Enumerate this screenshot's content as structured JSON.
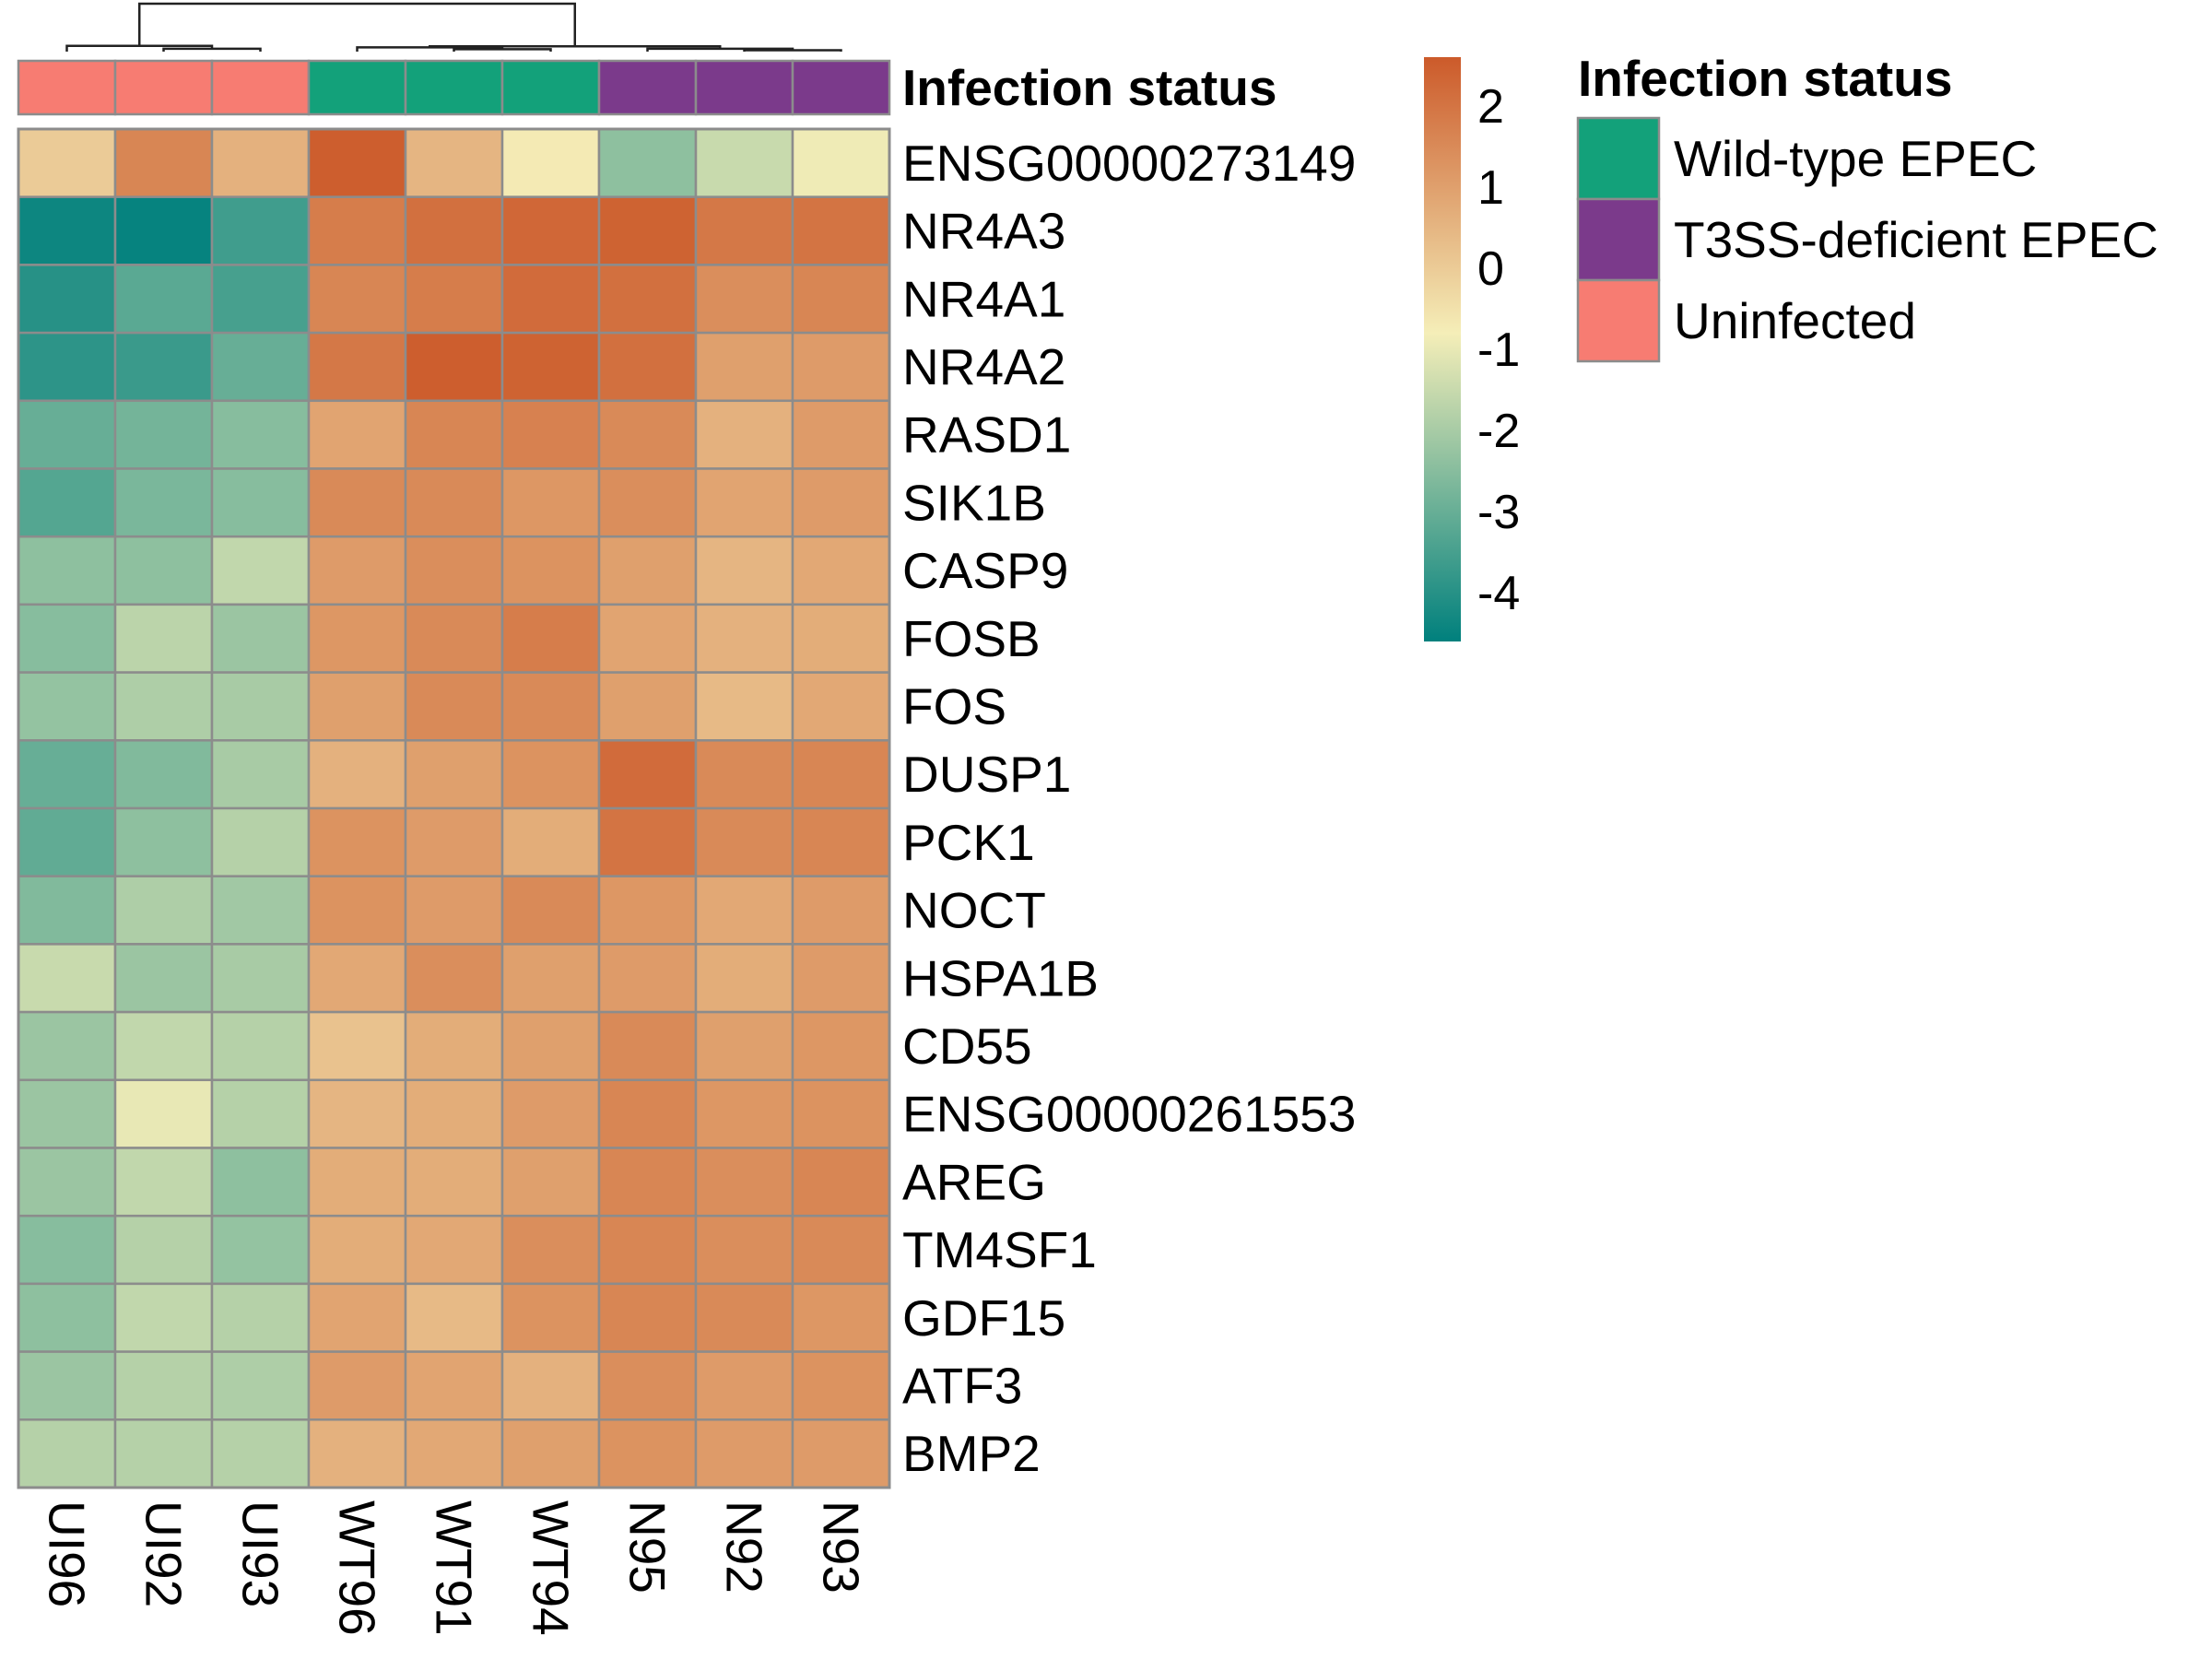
{
  "chart_data": {
    "type": "heatmap",
    "title": "",
    "columns": [
      "UI96",
      "UI92",
      "UI93",
      "WT96",
      "WT91",
      "WT94",
      "N95",
      "N92",
      "N93"
    ],
    "rows": [
      "ENSG00000273149",
      "NR4A3",
      "NR4A1",
      "NR4A2",
      "RASD1",
      "SIK1B",
      "CASP9",
      "FOSB",
      "FOS",
      "DUSP1",
      "PCK1",
      "NOCT",
      "HSPA1B",
      "CD55",
      "ENSG00000261553",
      "AREG",
      "TM4SF1",
      "GDF15",
      "ATF3",
      "BMP2"
    ],
    "values": [
      [
        0.0,
        1.6,
        0.6,
        2.5,
        0.5,
        -0.7,
        -2.4,
        -1.5,
        -0.9
      ],
      [
        -4.4,
        -4.5,
        -3.6,
        1.8,
        2.1,
        2.3,
        2.4,
        1.9,
        2.0
      ],
      [
        -4.0,
        -3.2,
        -3.5,
        1.6,
        1.8,
        2.2,
        2.1,
        1.4,
        1.6
      ],
      [
        -3.9,
        -3.7,
        -3.0,
        1.9,
        2.5,
        2.4,
        2.1,
        1.0,
        1.1
      ],
      [
        -3.0,
        -2.8,
        -2.5,
        0.9,
        1.6,
        1.7,
        1.5,
        0.6,
        1.1
      ],
      [
        -3.3,
        -2.7,
        -2.5,
        1.5,
        1.5,
        1.2,
        1.4,
        0.9,
        1.1
      ],
      [
        -2.4,
        -2.4,
        -1.6,
        1.1,
        1.4,
        1.3,
        1.0,
        0.5,
        0.8
      ],
      [
        -2.5,
        -1.7,
        -2.2,
        1.2,
        1.5,
        1.8,
        0.9,
        0.6,
        0.7
      ],
      [
        -2.3,
        -1.9,
        -2.0,
        1.0,
        1.5,
        1.5,
        1.0,
        0.4,
        0.8
      ],
      [
        -3.0,
        -2.6,
        -2.0,
        0.6,
        1.0,
        1.3,
        2.2,
        1.5,
        1.6
      ],
      [
        -3.1,
        -2.4,
        -1.8,
        1.3,
        1.1,
        0.7,
        2.0,
        1.5,
        1.6
      ],
      [
        -2.6,
        -1.9,
        -2.1,
        1.3,
        1.1,
        1.5,
        1.2,
        0.8,
        1.1
      ],
      [
        -1.5,
        -2.2,
        -2.0,
        0.8,
        1.4,
        1.0,
        1.1,
        0.7,
        1.1
      ],
      [
        -2.2,
        -1.6,
        -1.8,
        0.2,
        0.7,
        1.0,
        1.5,
        1.0,
        1.2
      ],
      [
        -2.2,
        -1.0,
        -1.8,
        0.5,
        0.7,
        1.1,
        1.6,
        1.2,
        1.3
      ],
      [
        -2.2,
        -1.6,
        -2.4,
        0.7,
        0.7,
        1.0,
        1.6,
        1.4,
        1.6
      ],
      [
        -2.5,
        -1.8,
        -2.3,
        0.7,
        0.8,
        1.4,
        1.6,
        1.4,
        1.5
      ],
      [
        -2.4,
        -1.6,
        -1.8,
        0.9,
        0.4,
        1.3,
        1.6,
        1.5,
        1.2
      ],
      [
        -2.2,
        -1.8,
        -1.9,
        1.1,
        0.9,
        0.6,
        1.4,
        1.1,
        1.3
      ],
      [
        -1.8,
        -1.8,
        -1.8,
        0.6,
        0.8,
        1.0,
        1.3,
        1.1,
        1.1
      ]
    ],
    "color_scale": {
      "min": -4.6,
      "max": 2.6,
      "stops": [
        {
          "value": -4.6,
          "color": "#00807d"
        },
        {
          "value": -0.8,
          "color": "#f5eeb8"
        },
        {
          "value": 2.6,
          "color": "#cc5a2a"
        }
      ],
      "ticks": [
        2,
        1,
        0,
        -1,
        -2,
        -3,
        -4
      ]
    },
    "annotation": {
      "name": "Infection status",
      "column_groups": [
        "Uninfected",
        "Uninfected",
        "Uninfected",
        "Wild-type EPEC",
        "Wild-type EPEC",
        "Wild-type EPEC",
        "T3SS-deficient EPEC",
        "T3SS-deficient EPEC",
        "T3SS-deficient EPEC"
      ]
    },
    "legend": {
      "title": "Infection status",
      "placement": "right",
      "entries": [
        {
          "label": "Wild-type EPEC",
          "color": "#13a17a"
        },
        {
          "label": "T3SS-deficient EPEC",
          "color": "#7b3a8b"
        },
        {
          "label": "Uninfected",
          "color": "#f77c72"
        }
      ]
    },
    "dendrogram": {
      "merges": [
        [
          1,
          2,
          0.06
        ],
        [
          0,
          9,
          0.12
        ],
        [
          4,
          5,
          0.05
        ],
        [
          7,
          8,
          0.03
        ],
        [
          6,
          12,
          0.06
        ],
        [
          3,
          11,
          0.09
        ],
        [
          14,
          13,
          0.11
        ],
        [
          10,
          15,
          1.0
        ]
      ],
      "max_height": 1.0
    },
    "grid": false
  }
}
